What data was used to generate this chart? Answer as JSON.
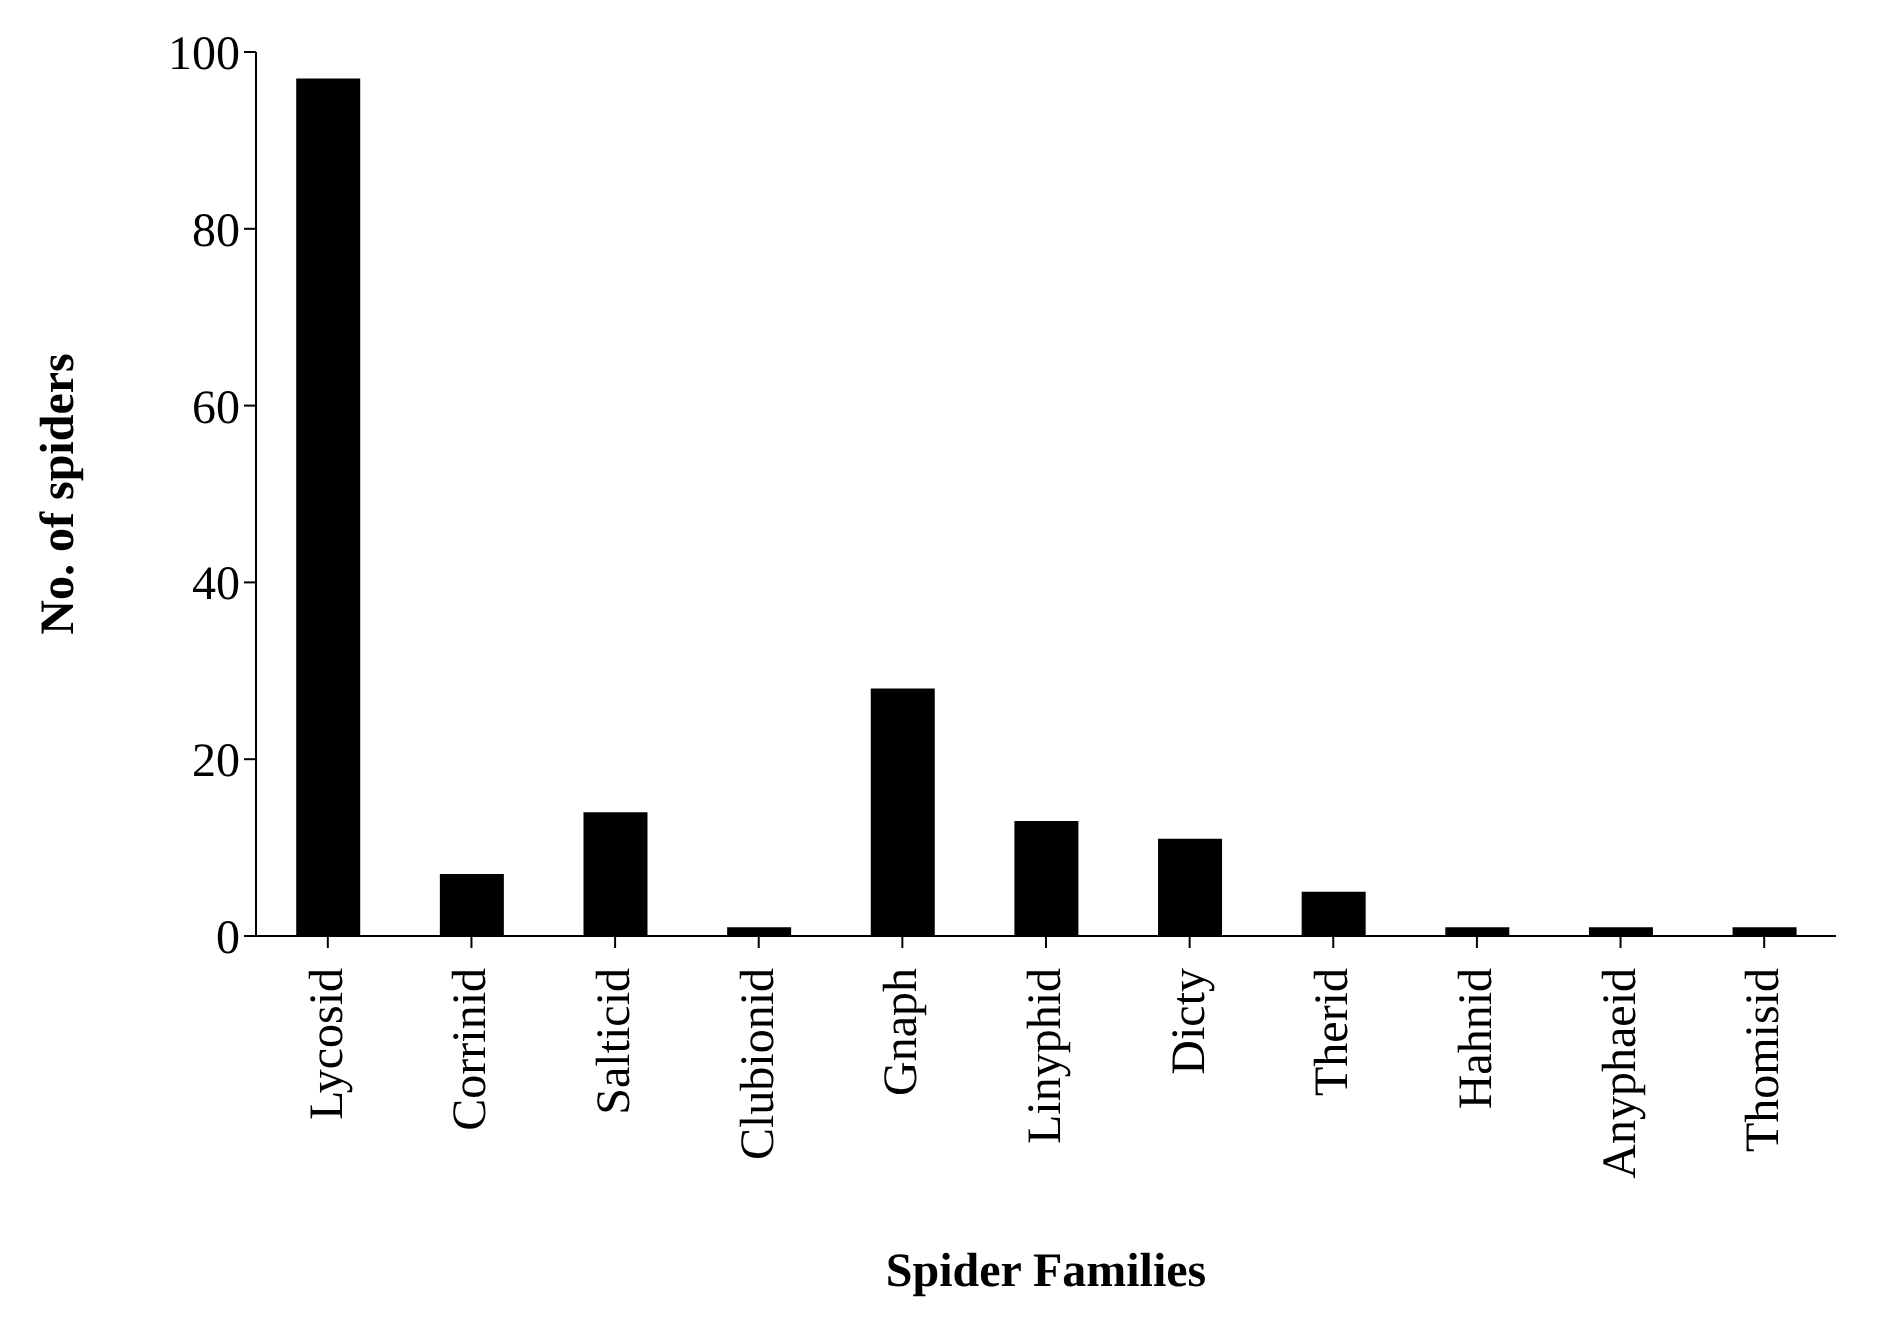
{
  "chart_data": {
    "type": "bar",
    "xlabel": "Spider Families",
    "ylabel": "No. of spiders",
    "categories": [
      "Lycosid",
      "Corrinid",
      "Salticid",
      "Clubionid",
      "Gnaph",
      "Linyphid",
      "Dicty",
      "Therid",
      "Hahnid",
      "Anyphaeid",
      "Thomisid"
    ],
    "values": [
      97,
      7,
      14,
      1,
      28,
      13,
      11,
      5,
      1,
      1,
      1
    ],
    "color": "#000000",
    "ylim": [
      0,
      100
    ],
    "yticks": [
      0,
      20,
      40,
      60,
      80,
      100
    ],
    "grid": false,
    "legend": false
  }
}
